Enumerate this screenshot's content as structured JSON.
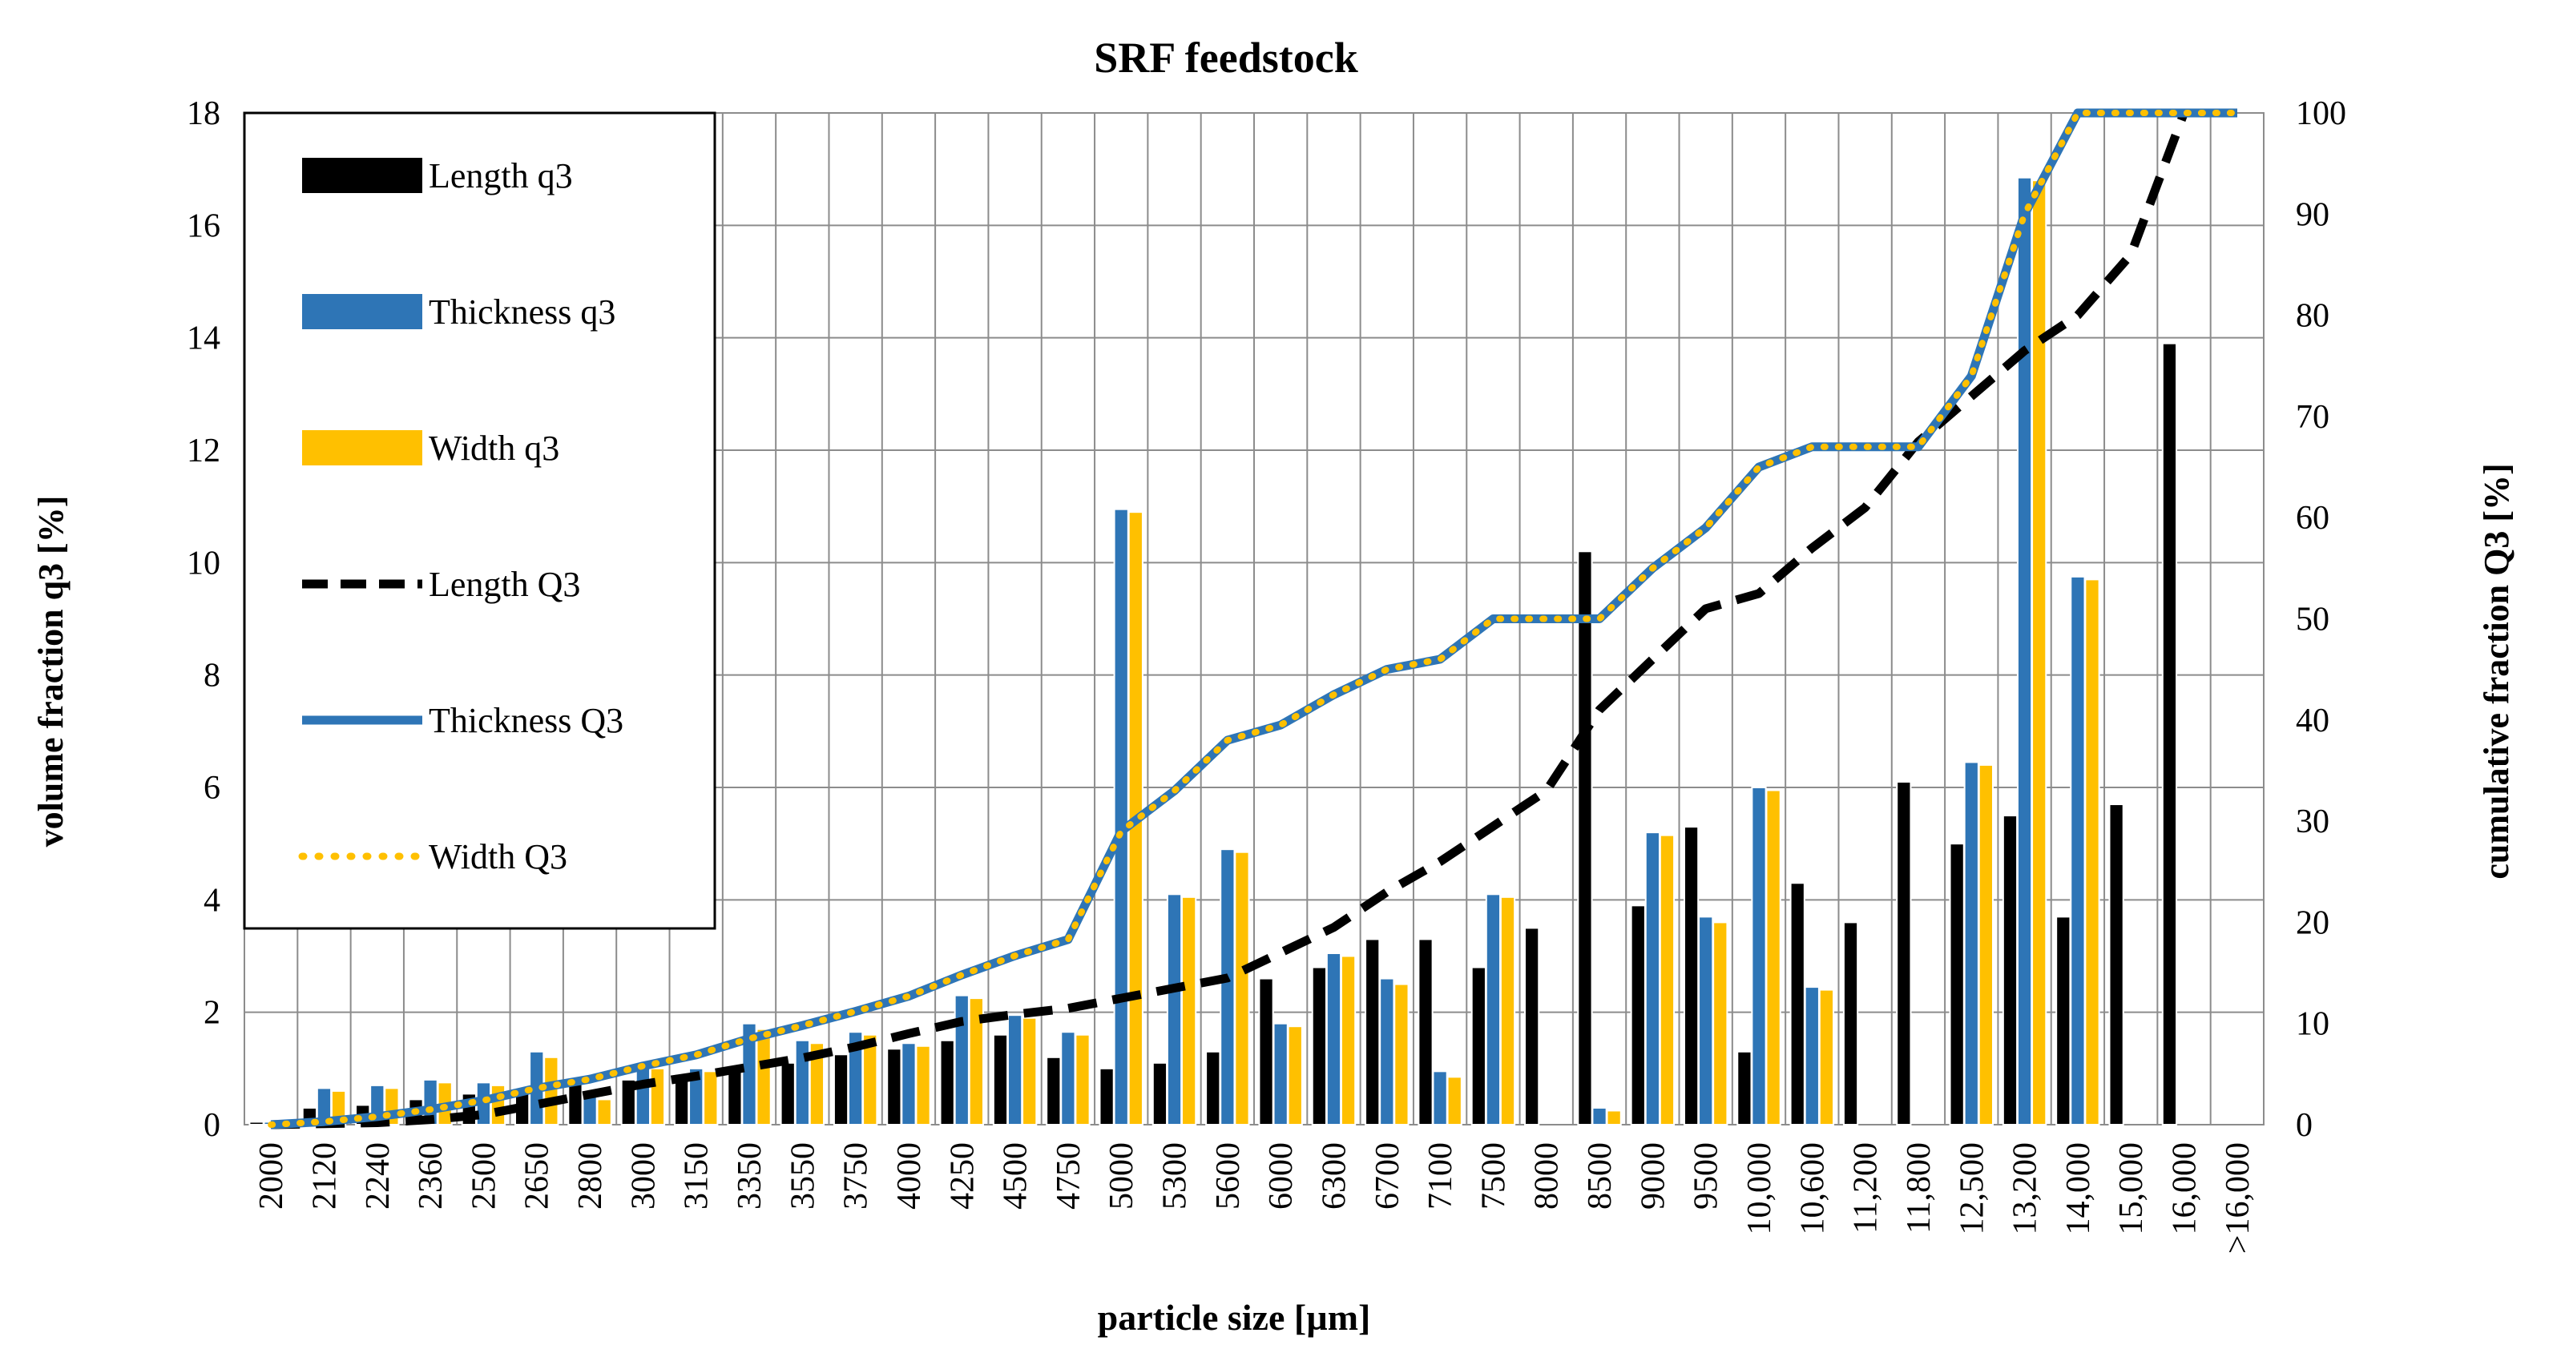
{
  "chart_data": {
    "type": "bar+line",
    "title": "SRF feedstock",
    "xlabel": "particle size [µm]",
    "ylabel": "volume fraction q3 [%]",
    "y2label": "cumulative fraction Q3 [%]",
    "ylim": [
      0,
      18
    ],
    "y2lim": [
      0,
      100
    ],
    "yticks": [
      "0",
      "2",
      "4",
      "6",
      "8",
      "10",
      "12",
      "14",
      "16",
      "18"
    ],
    "y2ticks": [
      "0",
      "10",
      "20",
      "30",
      "40",
      "50",
      "60",
      "70",
      "80",
      "90",
      "100"
    ],
    "grid": true,
    "legend_position": "top-left",
    "categories": [
      "2000",
      "2120",
      "2240",
      "2360",
      "2500",
      "2650",
      "2800",
      "3000",
      "3150",
      "3350",
      "3550",
      "3750",
      "4000",
      "4250",
      "4500",
      "4750",
      "5000",
      "5300",
      "5600",
      "6000",
      "6300",
      "6700",
      "7100",
      "7500",
      "8000",
      "8500",
      "9000",
      "9500",
      "10,000",
      "10,600",
      "11,200",
      "11,800",
      "12,500",
      "13,200",
      "14,000",
      "15,000",
      "16,000",
      ">16,000"
    ],
    "bar_series": [
      {
        "name": "Length q3",
        "color": "#000000",
        "values": [
          0.05,
          0.3,
          0.35,
          0.45,
          0.55,
          0.65,
          0.75,
          0.8,
          0.9,
          1.05,
          1.1,
          1.25,
          1.35,
          1.5,
          1.6,
          1.2,
          1.0,
          1.1,
          1.3,
          2.6,
          2.8,
          3.3,
          3.3,
          2.8,
          3.5,
          10.2,
          3.9,
          5.3,
          1.3,
          4.3,
          3.6,
          6.1,
          5.0,
          5.5,
          3.7,
          5.7,
          13.9,
          0
        ]
      },
      {
        "name": "Thickness q3",
        "color": "#2e75b6",
        "values": [
          0.05,
          0.65,
          0.7,
          0.8,
          0.75,
          1.3,
          0.5,
          1.1,
          1.0,
          1.8,
          1.5,
          1.65,
          1.45,
          2.3,
          1.95,
          1.65,
          10.95,
          4.1,
          4.9,
          1.8,
          3.05,
          2.6,
          0.95,
          4.1,
          0,
          0.3,
          5.2,
          3.7,
          6.0,
          2.45,
          0,
          0,
          6.45,
          16.85,
          9.75,
          0,
          0,
          0
        ]
      },
      {
        "name": "Width q3",
        "color": "#ffc000",
        "values": [
          0.05,
          0.6,
          0.65,
          0.75,
          0.7,
          1.2,
          0.45,
          1.0,
          0.95,
          1.7,
          1.45,
          1.6,
          1.4,
          2.25,
          1.9,
          1.6,
          10.9,
          4.05,
          4.85,
          1.75,
          3.0,
          2.5,
          0.85,
          4.05,
          0,
          0.25,
          5.15,
          3.6,
          5.95,
          2.4,
          0,
          0,
          6.4,
          16.8,
          9.7,
          0,
          0,
          0
        ]
      }
    ],
    "line_series": [
      {
        "name": "Length Q3",
        "color": "#000000",
        "style": "dashed",
        "values": [
          0,
          0.1,
          0.2,
          0.5,
          1.0,
          2.0,
          3.0,
          4.0,
          4.8,
          5.7,
          6.6,
          7.7,
          9.0,
          10.2,
          10.9,
          11.5,
          12.5,
          13.5,
          14.5,
          17,
          19.5,
          23,
          26,
          29.5,
          33,
          41,
          46,
          51,
          52.5,
          57,
          61,
          67.5,
          72,
          76.5,
          80,
          86,
          100,
          100
        ]
      },
      {
        "name": "Thickness Q3",
        "color": "#2e75b6",
        "style": "solid",
        "values": [
          0,
          0.3,
          0.8,
          1.5,
          2.4,
          3.6,
          4.5,
          5.8,
          6.9,
          8.5,
          9.8,
          11.2,
          12.7,
          14.8,
          16.7,
          18.3,
          29,
          33,
          38,
          39.5,
          42.5,
          45,
          46,
          50,
          50,
          50,
          55,
          59,
          65,
          67,
          67,
          67,
          74,
          90,
          100,
          100,
          100,
          100
        ]
      },
      {
        "name": "Width Q3",
        "color": "#ffc000",
        "style": "dotted",
        "values": [
          0,
          0.3,
          0.8,
          1.5,
          2.4,
          3.6,
          4.5,
          5.8,
          6.9,
          8.5,
          9.8,
          11.2,
          12.7,
          14.8,
          16.7,
          18.3,
          29,
          33,
          38,
          39.5,
          42.5,
          45,
          46,
          50,
          50,
          50,
          55,
          59,
          65,
          67,
          67,
          67,
          74,
          90,
          100,
          100,
          100,
          100
        ]
      }
    ]
  }
}
